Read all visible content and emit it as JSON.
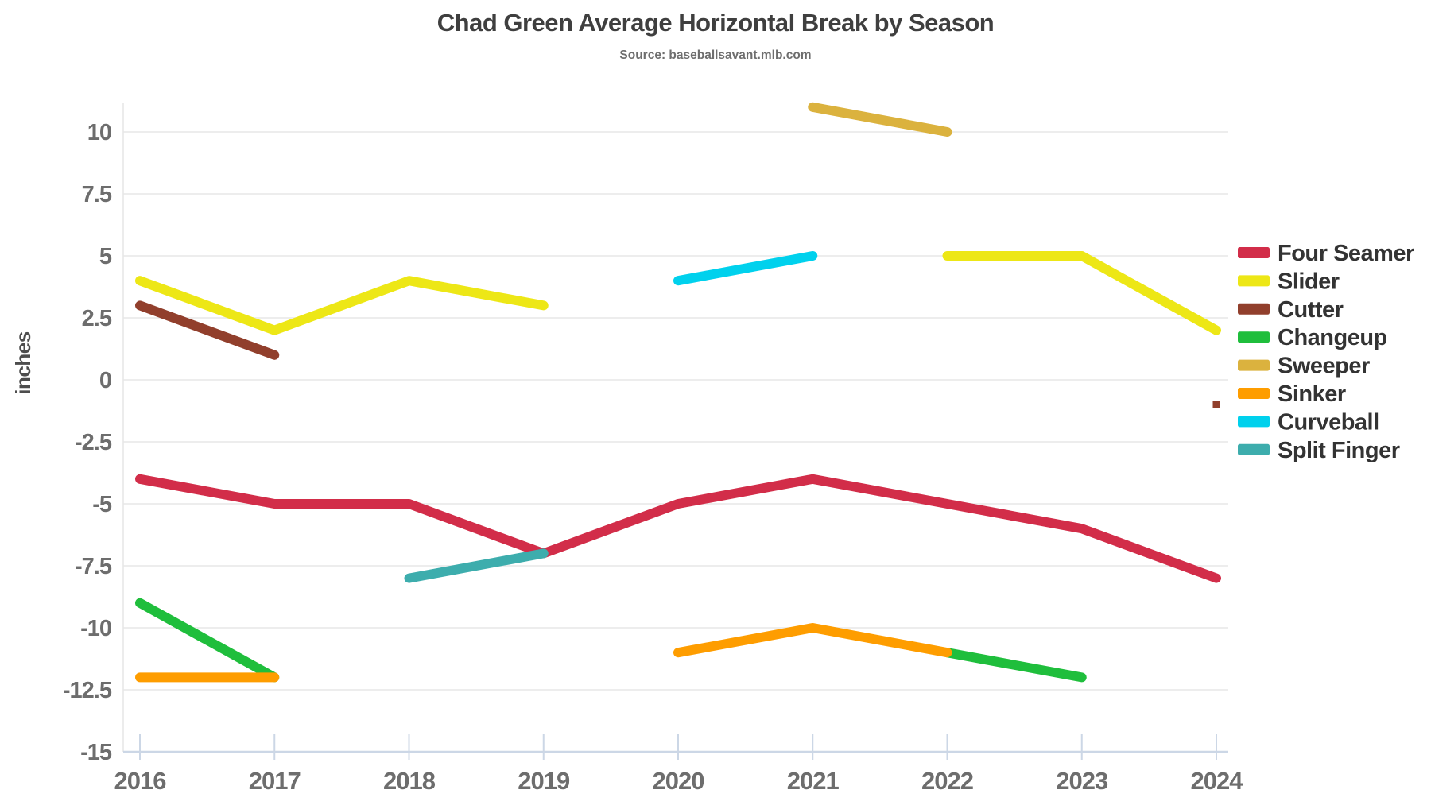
{
  "page": {
    "background": "#ffffff"
  },
  "chart_data": {
    "type": "line",
    "title": "Chad Green Average Horizontal Break by Season",
    "subtitle": "Source: baseballsavant.mlb.com",
    "ylabel": "inches",
    "x_ticks": [
      "2016",
      "2017",
      "2018",
      "2019",
      "2020",
      "2021",
      "2022",
      "2023",
      "2024"
    ],
    "y_ticks": [
      "10",
      "7.5",
      "5",
      "2.5",
      "0",
      "-2.5",
      "-5",
      "-7.5",
      "-10",
      "-12.5",
      "-15"
    ],
    "ylim": [
      -15,
      11.8
    ],
    "grid": true,
    "legend_position": "right",
    "colors": {
      "grid": "#ededed",
      "axis": "#ccd7e6",
      "tick_label": "#6d6d6d",
      "title": "#3f3f3f",
      "subtitle": "#6e6e6e",
      "legend_label": "#333333",
      "axis_label": "#4d4d4d"
    },
    "series": [
      {
        "name": "Four Seamer",
        "color": "#D22D49",
        "segments": [
          [
            [
              2016,
              -4
            ],
            [
              2017,
              -5
            ],
            [
              2018,
              -5
            ],
            [
              2019,
              -7
            ],
            [
              2020,
              -5
            ],
            [
              2021,
              -4
            ],
            [
              2022,
              -5
            ],
            [
              2023,
              -6
            ],
            [
              2024,
              -8
            ]
          ]
        ]
      },
      {
        "name": "Slider",
        "color": "#EDE716",
        "segments": [
          [
            [
              2016,
              4
            ],
            [
              2017,
              2
            ],
            [
              2018,
              4
            ],
            [
              2019,
              3
            ]
          ],
          [
            [
              2022,
              5
            ],
            [
              2023,
              5
            ],
            [
              2024,
              2
            ]
          ]
        ]
      },
      {
        "name": "Cutter",
        "color": "#913F2C",
        "segments": [
          [
            [
              2016,
              3
            ],
            [
              2017,
              1
            ]
          ],
          [
            [
              2024,
              -1
            ]
          ]
        ]
      },
      {
        "name": "Changeup",
        "color": "#1FBE3C",
        "segments": [
          [
            [
              2016,
              -9
            ],
            [
              2017,
              -12
            ]
          ],
          [
            [
              2022,
              -11
            ],
            [
              2023,
              -12
            ]
          ]
        ]
      },
      {
        "name": "Sweeper",
        "color": "#DBB23E",
        "segments": [
          [
            [
              2021,
              11
            ],
            [
              2022,
              10
            ]
          ]
        ]
      },
      {
        "name": "Sinker",
        "color": "#FE9D00",
        "segments": [
          [
            [
              2016,
              -12
            ],
            [
              2017,
              -12
            ]
          ],
          [
            [
              2020,
              -11
            ],
            [
              2021,
              -10
            ],
            [
              2022,
              -11
            ]
          ]
        ]
      },
      {
        "name": "Curveball",
        "color": "#00D1ED",
        "segments": [
          [
            [
              2020,
              4
            ],
            [
              2021,
              5
            ]
          ]
        ]
      },
      {
        "name": "Split Finger",
        "color": "#3DADAD",
        "segments": [
          [
            [
              2018,
              -8
            ],
            [
              2019,
              -7
            ]
          ]
        ]
      }
    ]
  }
}
